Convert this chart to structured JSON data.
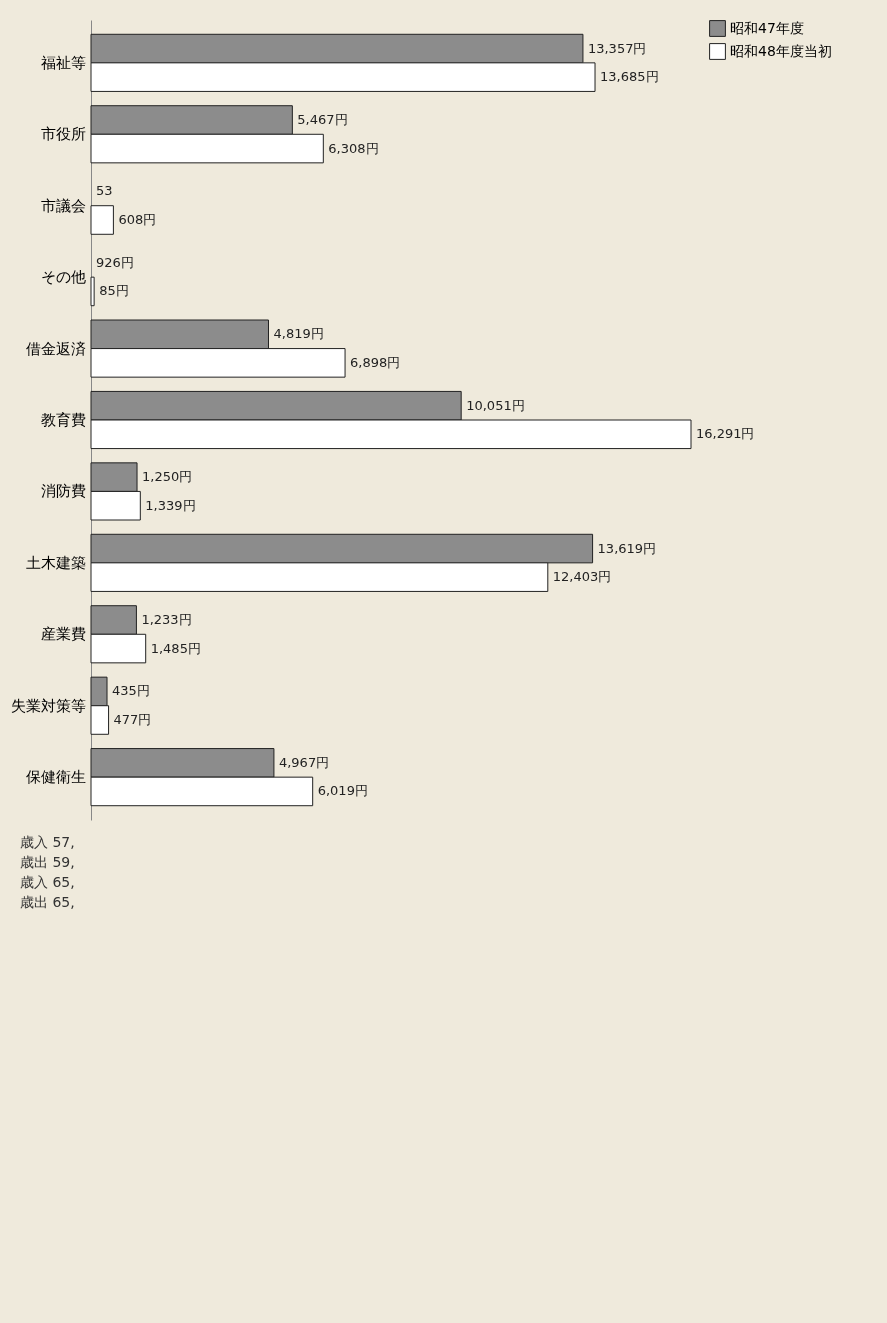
{
  "chart_data": {
    "type": "bar",
    "orientation": "horizontal",
    "categories": [
      "福祉等",
      "市役所",
      "市議会",
      "その他",
      "借金返済",
      "教育費",
      "消防費",
      "土木建築",
      "産業費",
      "失業対策等",
      "保健衛生"
    ],
    "series": [
      {
        "name": "昭和47年度",
        "color": "#8c8c8c",
        "values": [
          13357,
          5467,
          null,
          null,
          4819,
          10051,
          1250,
          13619,
          1233,
          435,
          4967
        ],
        "value_labels": [
          "13,357円",
          "5,467円",
          "53",
          "926円",
          "4,819円",
          "10,051円",
          "1,250円",
          "13,619円",
          "1,233円",
          "435円",
          "4,967円"
        ]
      },
      {
        "name": "昭和48年度当初",
        "color": "#ffffff",
        "values": [
          13685,
          6308,
          608,
          85,
          6898,
          16291,
          1339,
          12403,
          1485,
          477,
          6019
        ],
        "value_labels": [
          "13,685円",
          "6,308円",
          "608円",
          "85円",
          "6,898円",
          "16,291円",
          "1,339円",
          "12,403円",
          "1,485円",
          "477円",
          "6,019円"
        ]
      }
    ],
    "tick_labels": "y",
    "legend": "right",
    "annotations": [
      "歳入 57,",
      "歳出 59,",
      "歳入 65,",
      "歳出 65,"
    ]
  }
}
